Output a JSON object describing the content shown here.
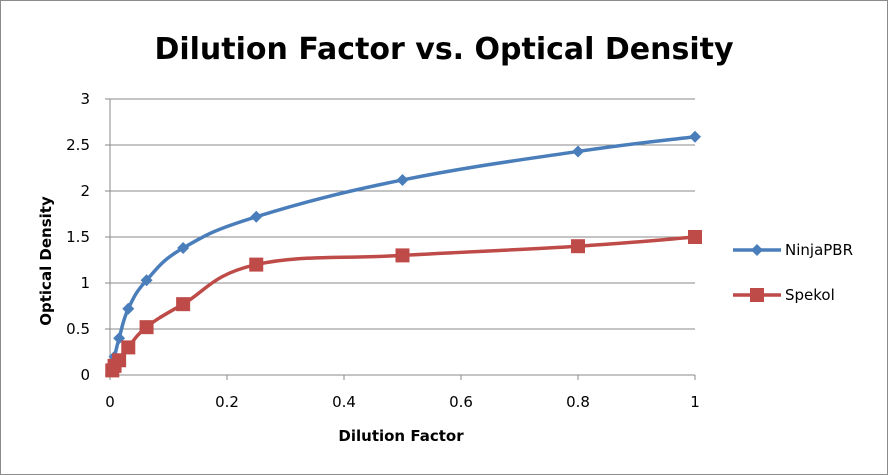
{
  "chart_data": {
    "type": "line",
    "title": "Dilution Factor vs. Optical Density",
    "xlabel": "Dilution Factor",
    "ylabel": "Optical Density",
    "xlim": [
      0,
      1
    ],
    "ylim": [
      0,
      3
    ],
    "x_ticks": [
      "0",
      "0.2",
      "0.4",
      "0.6",
      "0.8",
      "1"
    ],
    "y_ticks": [
      "0",
      "0.5",
      "1",
      "1.5",
      "2",
      "2.5",
      "3"
    ],
    "grid": "horizontal",
    "legend_position": "right",
    "series": [
      {
        "name": "NinjaPBR",
        "color": "#4a7ebb",
        "marker": "diamond",
        "points": [
          {
            "x": 0.0039,
            "y": 0.08
          },
          {
            "x": 0.0078,
            "y": 0.2
          },
          {
            "x": 0.0156,
            "y": 0.4
          },
          {
            "x": 0.03125,
            "y": 0.72
          },
          {
            "x": 0.0625,
            "y": 1.03
          },
          {
            "x": 0.125,
            "y": 1.38
          },
          {
            "x": 0.25,
            "y": 1.72
          },
          {
            "x": 0.5,
            "y": 2.12
          },
          {
            "x": 0.8,
            "y": 2.43
          },
          {
            "x": 1.0,
            "y": 2.59
          }
        ]
      },
      {
        "name": "Spekol",
        "color": "#be4b48",
        "marker": "square",
        "points": [
          {
            "x": 0.0039,
            "y": 0.05
          },
          {
            "x": 0.0078,
            "y": 0.1
          },
          {
            "x": 0.0156,
            "y": 0.16
          },
          {
            "x": 0.03125,
            "y": 0.3
          },
          {
            "x": 0.0625,
            "y": 0.52
          },
          {
            "x": 0.125,
            "y": 0.77
          },
          {
            "x": 0.25,
            "y": 1.2
          },
          {
            "x": 0.5,
            "y": 1.3
          },
          {
            "x": 0.8,
            "y": 1.4
          },
          {
            "x": 1.0,
            "y": 1.5
          }
        ]
      }
    ]
  }
}
